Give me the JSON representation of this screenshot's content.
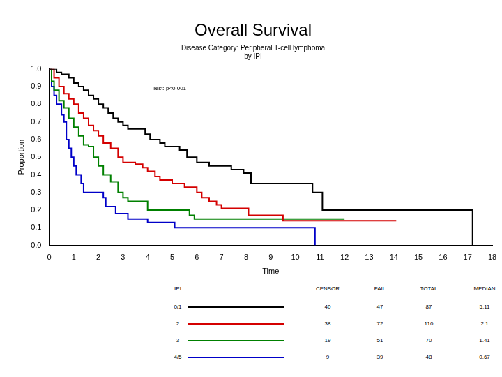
{
  "chart_data": {
    "type": "line",
    "title": "Overall Survival",
    "subtitle": [
      "Disease Category: Peripheral T-cell lymphoma",
      "by IPI"
    ],
    "x_label": "Time",
    "y_label": "Proportion",
    "xlim": [
      0,
      18
    ],
    "xticks": [
      0,
      1,
      2,
      3,
      4,
      5,
      6,
      7,
      8,
      9,
      10,
      11,
      12,
      13,
      14,
      15,
      16,
      17,
      18
    ],
    "ylim": [
      0,
      1
    ],
    "yticks": [
      {
        "value": 0,
        "label": "0.0"
      },
      0.1,
      0.2,
      0.3,
      0.4,
      0.5,
      0.6,
      0.7,
      0.8,
      0.9,
      {
        "value": 1,
        "label": "1.0"
      }
    ],
    "grid": false,
    "line_style": "stepped",
    "annotation": {
      "text": "Test: p<0.001",
      "x": 4.2,
      "y": 0.89
    },
    "table_columns": [
      "IPI",
      "CENSOR",
      "FAIL",
      "TOTAL",
      "MEDIAN"
    ],
    "series": [
      {
        "name": "0/1",
        "color": "#000000",
        "censor": 40,
        "fail": 47,
        "total": 87,
        "median": 5.11,
        "x": [
          0,
          0.3,
          0.5,
          0.8,
          1.0,
          1.2,
          1.4,
          1.6,
          1.8,
          2.0,
          2.2,
          2.4,
          2.6,
          2.8,
          3.0,
          3.2,
          3.9,
          4.1,
          4.5,
          4.7,
          5.3,
          5.6,
          6.0,
          6.5,
          7.4,
          7.9,
          8.2,
          10.7,
          11.1,
          17.2
        ],
        "values": [
          1.0,
          0.98,
          0.97,
          0.95,
          0.92,
          0.9,
          0.88,
          0.85,
          0.83,
          0.8,
          0.78,
          0.75,
          0.72,
          0.7,
          0.68,
          0.66,
          0.63,
          0.6,
          0.58,
          0.56,
          0.54,
          0.5,
          0.47,
          0.45,
          0.43,
          0.41,
          0.35,
          0.3,
          0.2,
          0.0
        ]
      },
      {
        "name": "2",
        "color": "#d40000",
        "censor": 38,
        "fail": 72,
        "total": 110,
        "median": 2.1,
        "x": [
          0,
          0.2,
          0.4,
          0.6,
          0.8,
          1.0,
          1.2,
          1.4,
          1.6,
          1.8,
          2.0,
          2.2,
          2.5,
          2.8,
          3.0,
          3.5,
          3.8,
          4.0,
          4.3,
          4.5,
          5.0,
          5.5,
          6.0,
          6.2,
          6.5,
          6.8,
          7.0,
          8.1,
          9.5,
          14.1
        ],
        "values": [
          1.0,
          0.95,
          0.9,
          0.86,
          0.83,
          0.8,
          0.75,
          0.72,
          0.68,
          0.65,
          0.62,
          0.58,
          0.55,
          0.5,
          0.47,
          0.46,
          0.44,
          0.42,
          0.39,
          0.37,
          0.35,
          0.33,
          0.3,
          0.27,
          0.25,
          0.23,
          0.21,
          0.17,
          0.14,
          0.14
        ]
      },
      {
        "name": "3",
        "color": "#008000",
        "censor": 19,
        "fail": 51,
        "total": 70,
        "median": 1.41,
        "x": [
          0,
          0.1,
          0.2,
          0.4,
          0.6,
          0.8,
          1.0,
          1.2,
          1.4,
          1.6,
          1.8,
          2.0,
          2.2,
          2.5,
          2.8,
          3.0,
          3.2,
          4.0,
          5.7,
          5.9,
          12.0
        ],
        "values": [
          1.0,
          0.93,
          0.88,
          0.82,
          0.78,
          0.72,
          0.67,
          0.62,
          0.57,
          0.56,
          0.5,
          0.45,
          0.4,
          0.36,
          0.3,
          0.27,
          0.25,
          0.2,
          0.17,
          0.15,
          0.15
        ]
      },
      {
        "name": "4/5",
        "color": "#0000c8",
        "censor": 9,
        "fail": 39,
        "total": 48,
        "median": 0.67,
        "x": [
          0,
          0.1,
          0.2,
          0.3,
          0.5,
          0.6,
          0.7,
          0.8,
          0.9,
          1.0,
          1.1,
          1.3,
          1.4,
          2.2,
          2.3,
          2.7,
          3.2,
          4.0,
          5.1,
          10.8
        ],
        "values": [
          1.0,
          0.9,
          0.85,
          0.8,
          0.74,
          0.7,
          0.6,
          0.55,
          0.5,
          0.45,
          0.4,
          0.35,
          0.3,
          0.27,
          0.22,
          0.18,
          0.15,
          0.13,
          0.1,
          0.0
        ]
      }
    ]
  }
}
